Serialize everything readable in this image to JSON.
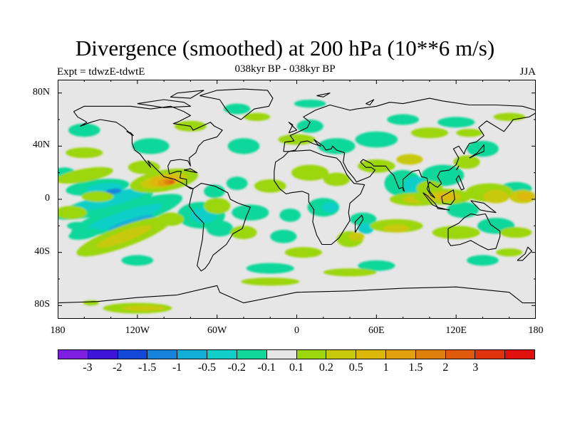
{
  "title": "Divergence (smoothed) at 200 hPa (10**6 m/s)",
  "left_label": "Expt = tdwzE-tdwtE",
  "center_label": "038kyr BP - 038kyr BP",
  "right_label": "JJA",
  "lat_ticks": [
    "80N",
    "40N",
    "0",
    "40S",
    "80S"
  ],
  "lon_ticks": [
    "180",
    "120W",
    "60W",
    "0",
    "60E",
    "120E",
    "180"
  ],
  "colorbar": {
    "colors": [
      "#7d1fe0",
      "#3c15d9",
      "#1448d8",
      "#1883dc",
      "#13aed8",
      "#0fcfc8",
      "#10d79a",
      "#e6e6e6",
      "#9cd60c",
      "#c8c90c",
      "#ddb80c",
      "#e0a10c",
      "#e0800c",
      "#e05a0c",
      "#e0320c",
      "#e0100c"
    ],
    "labels": [
      "-3",
      "-2",
      "-1.5",
      "-1",
      "-0.5",
      "-0.2",
      "-0.1",
      "0.1",
      "0.2",
      "0.5",
      "1",
      "1.5",
      "2",
      "3"
    ]
  }
}
